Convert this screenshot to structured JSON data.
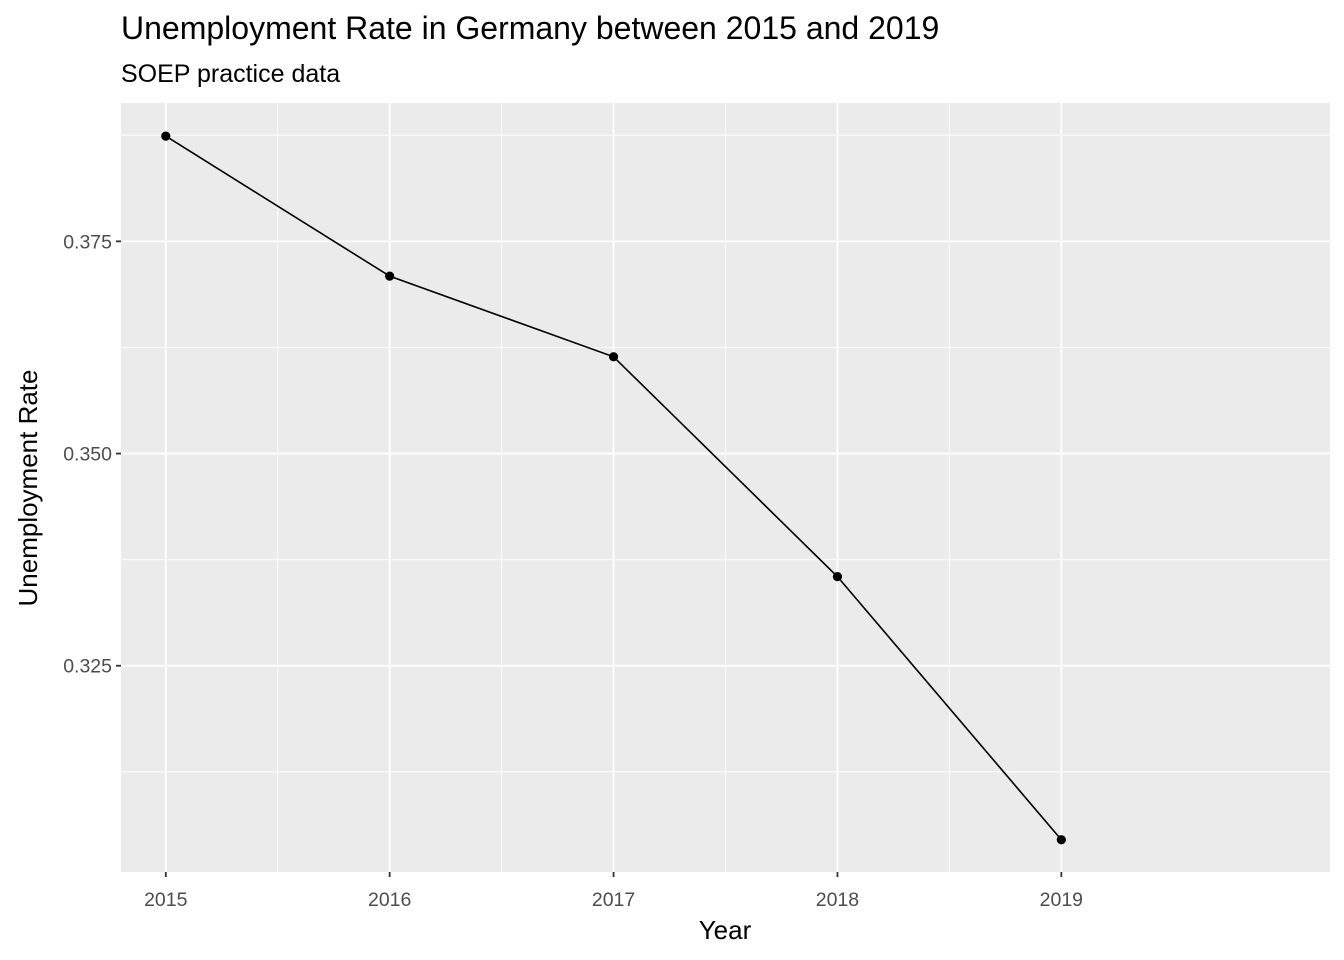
{
  "title": "Unemployment Rate in Germany between 2015 and 2019",
  "subtitle": "SOEP practice data",
  "chart_data": {
    "type": "line",
    "title": "Unemployment Rate in Germany between 2015 and 2019",
    "subtitle": "SOEP practice data",
    "xlabel": "Year",
    "ylabel": "Unemployment Rate",
    "x": [
      2015,
      2016,
      2017,
      2018,
      2019
    ],
    "series": [
      {
        "values": [
          0.3874,
          0.3709,
          0.3614,
          0.3355,
          0.3045
        ]
      }
    ],
    "x_ticks": [
      "2015",
      "2016",
      "2017",
      "2018",
      "2019"
    ],
    "y_ticks": [
      "0.325",
      "0.350",
      "0.375"
    ],
    "xlim": [
      2014.8,
      2020.2
    ],
    "ylim": [
      0.3007,
      0.3913
    ],
    "grid": true,
    "markers": true,
    "colors": {
      "panel": "#ebebeb",
      "grid": "#ffffff",
      "line": "#000000",
      "tick_text": "#4d4d4d"
    }
  }
}
